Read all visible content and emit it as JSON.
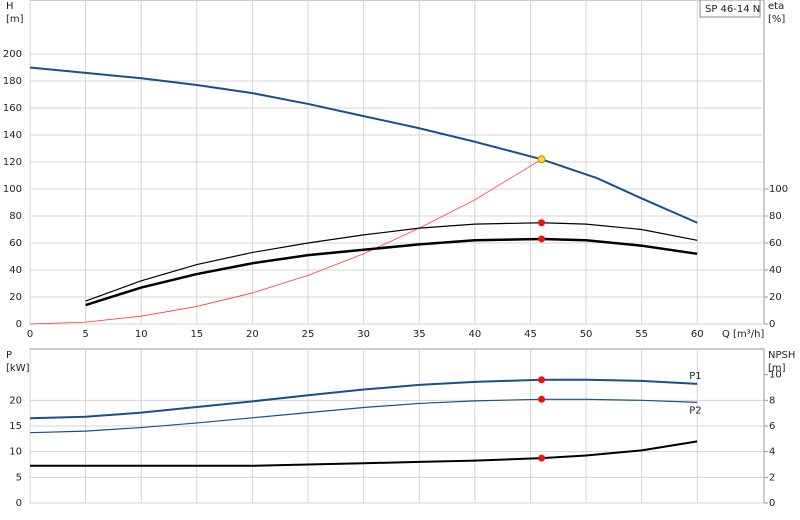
{
  "chart_data": [
    {
      "type": "line",
      "title": "SP 46-14 N",
      "ylabel": [
        "H",
        "[m]"
      ],
      "y2label": [
        "eta",
        "[%]"
      ],
      "xlabel": "Q [m³/h]",
      "xlim": [
        0,
        66
      ],
      "xticks": [
        0,
        5,
        10,
        15,
        20,
        25,
        30,
        35,
        40,
        45,
        50,
        55,
        60
      ],
      "xtick_labels": true,
      "ylim": [
        0,
        240
      ],
      "yticks": [
        0,
        20,
        40,
        60,
        80,
        100,
        120,
        140,
        160,
        180,
        200
      ],
      "y2lim": [
        0,
        240
      ],
      "y2ticks": [
        0,
        20,
        40,
        60,
        80,
        100
      ],
      "grid": true,
      "series": [
        {
          "color": "#1a4f8b",
          "width": 2,
          "x": [
            0,
            5,
            10,
            15,
            20,
            25,
            30,
            35,
            40,
            46,
            51,
            55,
            60
          ],
          "values": [
            190,
            186,
            182,
            177,
            171,
            163,
            154,
            145,
            135,
            122,
            108,
            93,
            75
          ]
        },
        {
          "color": "#ff3b3b",
          "width": 0.8,
          "x": [
            0,
            5,
            10,
            15,
            20,
            25,
            30,
            35,
            40,
            46
          ],
          "values": [
            0,
            1.4,
            5.8,
            13,
            23,
            36,
            52,
            71,
            92,
            122
          ]
        },
        {
          "color": "#000000",
          "width": 1.2,
          "axis": "y2",
          "x": [
            5,
            10,
            15,
            20,
            25,
            30,
            35,
            40,
            46,
            50,
            55,
            60
          ],
          "values": [
            17,
            32,
            44,
            53,
            60,
            66,
            71,
            74,
            75,
            74,
            70,
            62
          ]
        },
        {
          "color": "#000000",
          "width": 2.5,
          "axis": "y2",
          "x": [
            5,
            10,
            15,
            20,
            25,
            30,
            35,
            40,
            46,
            50,
            55,
            60
          ],
          "values": [
            14,
            27,
            37,
            45,
            51,
            55,
            59,
            62,
            63,
            62,
            58,
            52
          ]
        },
        {
          "marker": true,
          "color": "#ffd633",
          "x": [
            46
          ],
          "values": [
            122
          ]
        },
        {
          "marker": true,
          "color": "#ee1111",
          "axis": "y2",
          "x": [
            46,
            46
          ],
          "values": [
            75,
            63
          ]
        }
      ]
    },
    {
      "type": "line",
      "ylabel": [
        "P",
        "[kW]"
      ],
      "y2label": [
        "NPSH",
        "[m]"
      ],
      "xlim": [
        0,
        66
      ],
      "xticks": [
        0,
        5,
        10,
        15,
        20,
        25,
        30,
        35,
        40,
        45,
        50,
        55,
        60
      ],
      "xtick_labels": false,
      "ylim": [
        0,
        30
      ],
      "yticks": [
        0,
        5,
        10,
        15,
        20
      ],
      "y2lim": [
        0,
        12
      ],
      "y2ticks": [
        0,
        2,
        4,
        6,
        8,
        10
      ],
      "grid": true,
      "series": [
        {
          "name": "P1",
          "color": "#1a4f8b",
          "width": 2,
          "x": [
            0,
            5,
            10,
            15,
            20,
            25,
            30,
            35,
            40,
            46,
            50,
            55,
            60
          ],
          "values": [
            16.5,
            16.8,
            17.6,
            18.7,
            19.8,
            21,
            22.1,
            23,
            23.6,
            24,
            24,
            23.8,
            23.2
          ]
        },
        {
          "name": "P2",
          "color": "#1a4f8b",
          "width": 1.2,
          "x": [
            0,
            5,
            10,
            15,
            20,
            25,
            30,
            35,
            40,
            46,
            50,
            55,
            60
          ],
          "values": [
            13.7,
            14,
            14.7,
            15.6,
            16.6,
            17.6,
            18.6,
            19.4,
            19.9,
            20.2,
            20.2,
            20,
            19.6
          ]
        },
        {
          "color": "#000000",
          "width": 2,
          "axis": "y2",
          "x": [
            0,
            5,
            10,
            15,
            20,
            25,
            30,
            35,
            40,
            46,
            50,
            55,
            60
          ],
          "values": [
            2.9,
            2.9,
            2.9,
            2.9,
            2.9,
            3,
            3.1,
            3.2,
            3.3,
            3.5,
            3.7,
            4.1,
            4.8
          ]
        },
        {
          "marker": true,
          "color": "#ee1111",
          "x": [
            46,
            46
          ],
          "values": [
            24,
            20.2
          ]
        },
        {
          "marker": true,
          "color": "#ee1111",
          "axis": "y2",
          "x": [
            46
          ],
          "values": [
            3.5
          ]
        }
      ]
    }
  ]
}
